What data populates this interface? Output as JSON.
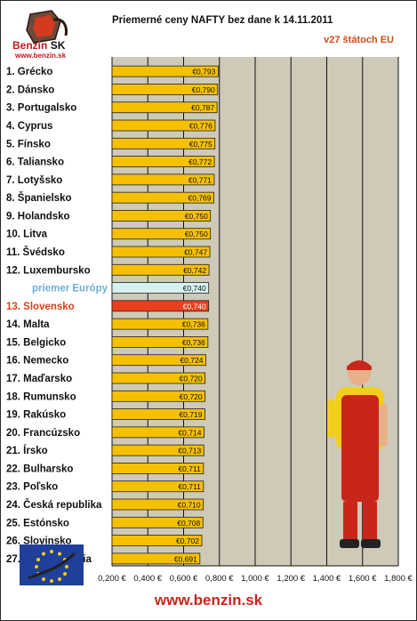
{
  "header": {
    "title": "Priemerné ceny NAFTY bez dane k 14.11.2011",
    "subtitle": "v27 štátoch EU",
    "logo_name": "Benzin",
    "logo_suffix": "SK",
    "logo_url": "www.benzin.sk"
  },
  "footer": {
    "url": "www.benzin.sk"
  },
  "colors": {
    "bar": "#f5c000",
    "bar_edge": "#222222",
    "highlight_bar": "#e8401e",
    "average_bar": "#d6f2f0",
    "highlight_text": "#d6421c",
    "average_text": "#6aaed8",
    "plot_bg": "#cfc9b8",
    "grid": "#111111"
  },
  "chart_data": {
    "type": "bar",
    "orientation": "horizontal",
    "title": "Priemerné ceny NAFTY bez dane k 14.11.2011",
    "subtitle": "v27 štátoch EU",
    "categories": [
      "1. Grécko",
      "2. Dánsko",
      "3. Portugalsko",
      "4. Cyprus",
      "5. Fínsko",
      "6. Taliansko",
      "7. Lotyšsko",
      "8. Španielsko",
      "9. Holandsko",
      "10. Litva",
      "11. Švédsko",
      "12. Luxembursko",
      "priemer Európy",
      "13. Slovensko",
      "14. Malta",
      "15. Belgicko",
      "16. Nemecko",
      "17. Maďarsko",
      "18. Rumunsko",
      "19. Rakúsko",
      "20. Francúzsko",
      "21. Írsko",
      "22. Bulharsko",
      "23. Poľsko",
      "24. Česká republika",
      "25. Estónsko",
      "26. Slovinsko",
      "27. Veľká Británia"
    ],
    "values": [
      0.793,
      0.79,
      0.787,
      0.776,
      0.775,
      0.772,
      0.771,
      0.769,
      0.75,
      0.75,
      0.747,
      0.742,
      0.74,
      0.74,
      0.736,
      0.736,
      0.724,
      0.72,
      0.72,
      0.719,
      0.714,
      0.713,
      0.711,
      0.711,
      0.71,
      0.708,
      0.702,
      0.691
    ],
    "value_labels": [
      "€0,793",
      "€0,790",
      "€0,787",
      "€0,776",
      "€0,775",
      "€0,772",
      "€0,771",
      "€0,769",
      "€0,750",
      "€0,750",
      "€0,747",
      "€0,742",
      "€0,740",
      "€0,740",
      "€0,736",
      "€0,736",
      "€0,724",
      "€0,720",
      "€0,720",
      "€0,719",
      "€0,714",
      "€0,713",
      "€0,711",
      "€0,711",
      "€0,710",
      "€0,708",
      "€0,702",
      "€0,691"
    ],
    "highlight": "13. Slovensko",
    "average": "priemer Európy",
    "xlim": [
      0.2,
      1.8
    ],
    "xticks": [
      0.2,
      0.4,
      0.6,
      0.8,
      1.0,
      1.2,
      1.4,
      1.6,
      1.8
    ],
    "xtick_labels": [
      "0,200 €",
      "0,400 €",
      "0,600 €",
      "0,800 €",
      "1,000 €",
      "1,200 €",
      "1,400 €",
      "1,600 €",
      "1,800 €"
    ],
    "xlabel": "",
    "ylabel": "",
    "grid": "vertical"
  }
}
